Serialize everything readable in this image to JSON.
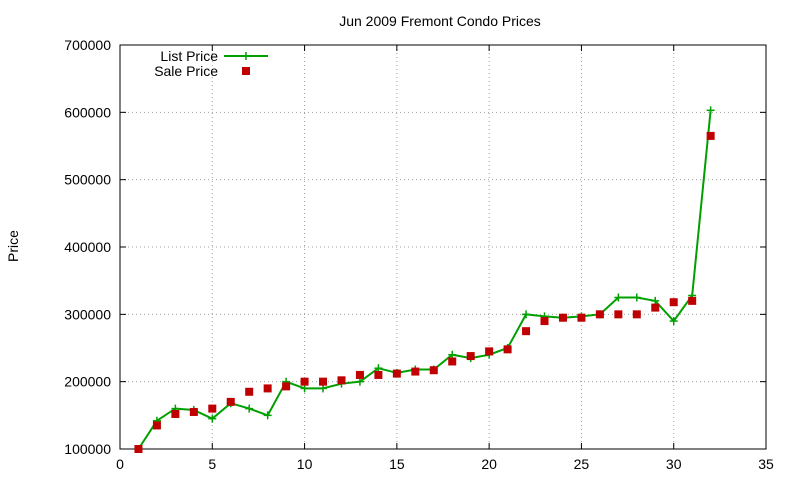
{
  "chart_data": {
    "type": "line",
    "title": "Jun 2009 Fremont Condo Prices",
    "xlabel": "",
    "ylabel": "Price",
    "xlim": [
      0,
      35
    ],
    "ylim": [
      100000,
      700000
    ],
    "x_ticks": [
      0,
      5,
      10,
      15,
      20,
      25,
      30,
      35
    ],
    "y_ticks": [
      100000,
      200000,
      300000,
      400000,
      500000,
      600000,
      700000
    ],
    "grid": true,
    "legend_position": "top-left",
    "series": [
      {
        "name": "List Price",
        "style": "line-plus",
        "color": "#00a000",
        "x": [
          1,
          2,
          3,
          4,
          5,
          6,
          7,
          8,
          9,
          10,
          11,
          12,
          13,
          14,
          15,
          16,
          17,
          18,
          19,
          20,
          21,
          22,
          23,
          24,
          25,
          26,
          27,
          28,
          29,
          30,
          31,
          32
        ],
        "values": [
          100000,
          142000,
          160000,
          158000,
          145000,
          168000,
          160000,
          150000,
          200000,
          190000,
          190000,
          197000,
          200000,
          220000,
          213000,
          218000,
          218000,
          240000,
          235000,
          240000,
          250000,
          300000,
          297000,
          295000,
          297000,
          300000,
          325000,
          325000,
          320000,
          290000,
          328000,
          603000
        ]
      },
      {
        "name": "Sale Price",
        "style": "points-square",
        "color": "#c00000",
        "x": [
          1,
          2,
          3,
          4,
          5,
          6,
          7,
          8,
          9,
          10,
          11,
          12,
          13,
          14,
          15,
          16,
          17,
          18,
          19,
          20,
          21,
          22,
          23,
          24,
          25,
          26,
          27,
          28,
          29,
          30,
          31,
          32
        ],
        "values": [
          100000,
          135000,
          152000,
          155000,
          160000,
          170000,
          185000,
          190000,
          193000,
          200000,
          200000,
          202000,
          210000,
          210000,
          212000,
          215000,
          217000,
          230000,
          238000,
          245000,
          248000,
          275000,
          290000,
          295000,
          295000,
          300000,
          300000,
          300000,
          310000,
          318000,
          320000,
          565000
        ]
      }
    ]
  }
}
